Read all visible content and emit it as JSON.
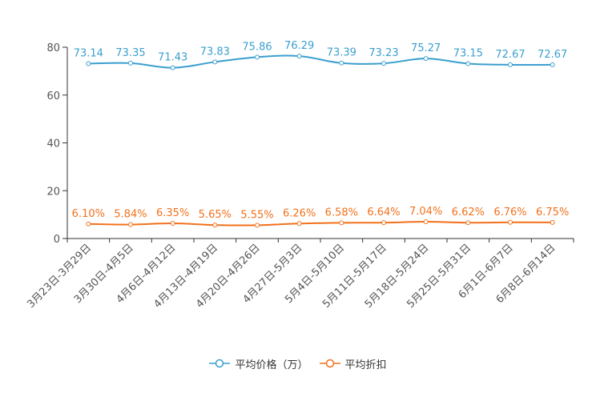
{
  "chart_data": {
    "type": "line",
    "title": "",
    "xlabel": "",
    "ylabel": "",
    "ylim": [
      0,
      80
    ],
    "yticks": [
      0,
      20,
      40,
      60,
      80
    ],
    "grid": false,
    "legend_position": "bottom-center",
    "categories": [
      "3月23日-3月29日",
      "3月30日-4月5日",
      "4月6日-4月12日",
      "4月13日-4月19日",
      "4月20日-4月26日",
      "4月27日-5月3日",
      "5月4日-5月10日",
      "5月11日-5月17日",
      "5月18日-5月24日",
      "5月25日-5月31日",
      "6月1日-6月7日",
      "6月8日-6月14日"
    ],
    "series": [
      {
        "name": "平均价格（万）",
        "color": "#3a9fcf",
        "values": [
          73.14,
          73.35,
          71.43,
          73.83,
          75.86,
          76.29,
          73.39,
          73.23,
          75.27,
          73.15,
          72.67,
          72.67
        ],
        "labels": [
          "73.14",
          "73.35",
          "71.43",
          "73.83",
          "75.86",
          "76.29",
          "73.39",
          "73.23",
          "75.27",
          "73.15",
          "72.67",
          "72.67"
        ]
      },
      {
        "name": "平均折扣",
        "color": "#f2711c",
        "values": [
          6.1,
          5.84,
          6.35,
          5.65,
          5.55,
          6.26,
          6.58,
          6.64,
          7.04,
          6.62,
          6.76,
          6.75
        ],
        "labels": [
          "6.10%",
          "5.84%",
          "6.35%",
          "5.65%",
          "5.55%",
          "6.26%",
          "6.58%",
          "6.64%",
          "7.04%",
          "6.62%",
          "6.76%",
          "6.75%"
        ]
      }
    ]
  }
}
